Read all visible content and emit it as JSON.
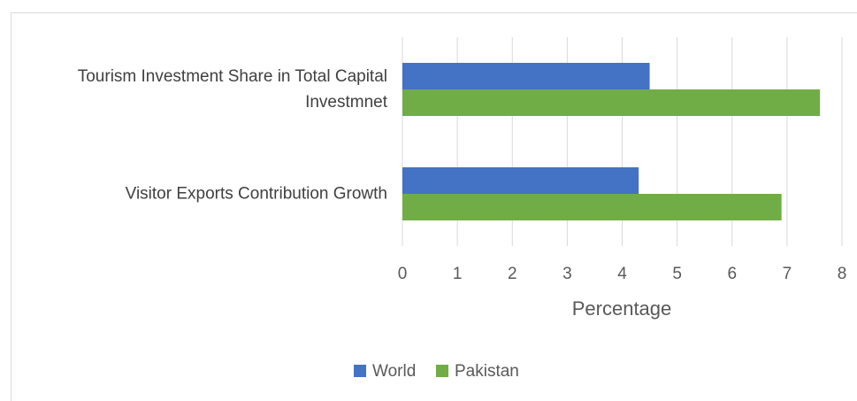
{
  "chart_data": {
    "type": "barh",
    "categories": [
      "Tourism Investment Share in Total Capital Investmnet",
      "Visitor Exports Contribution Growth"
    ],
    "series": [
      {
        "name": "World",
        "color": "#4472c4",
        "values": [
          4.5,
          4.3
        ]
      },
      {
        "name": "Pakistan",
        "color": "#70ad47",
        "values": [
          7.6,
          6.9
        ]
      }
    ],
    "xlim": [
      0,
      8
    ],
    "xticks": [
      0,
      1,
      2,
      3,
      4,
      5,
      6,
      7,
      8
    ],
    "xlabel": "Percentage",
    "grid": true,
    "legend": "bottom"
  }
}
